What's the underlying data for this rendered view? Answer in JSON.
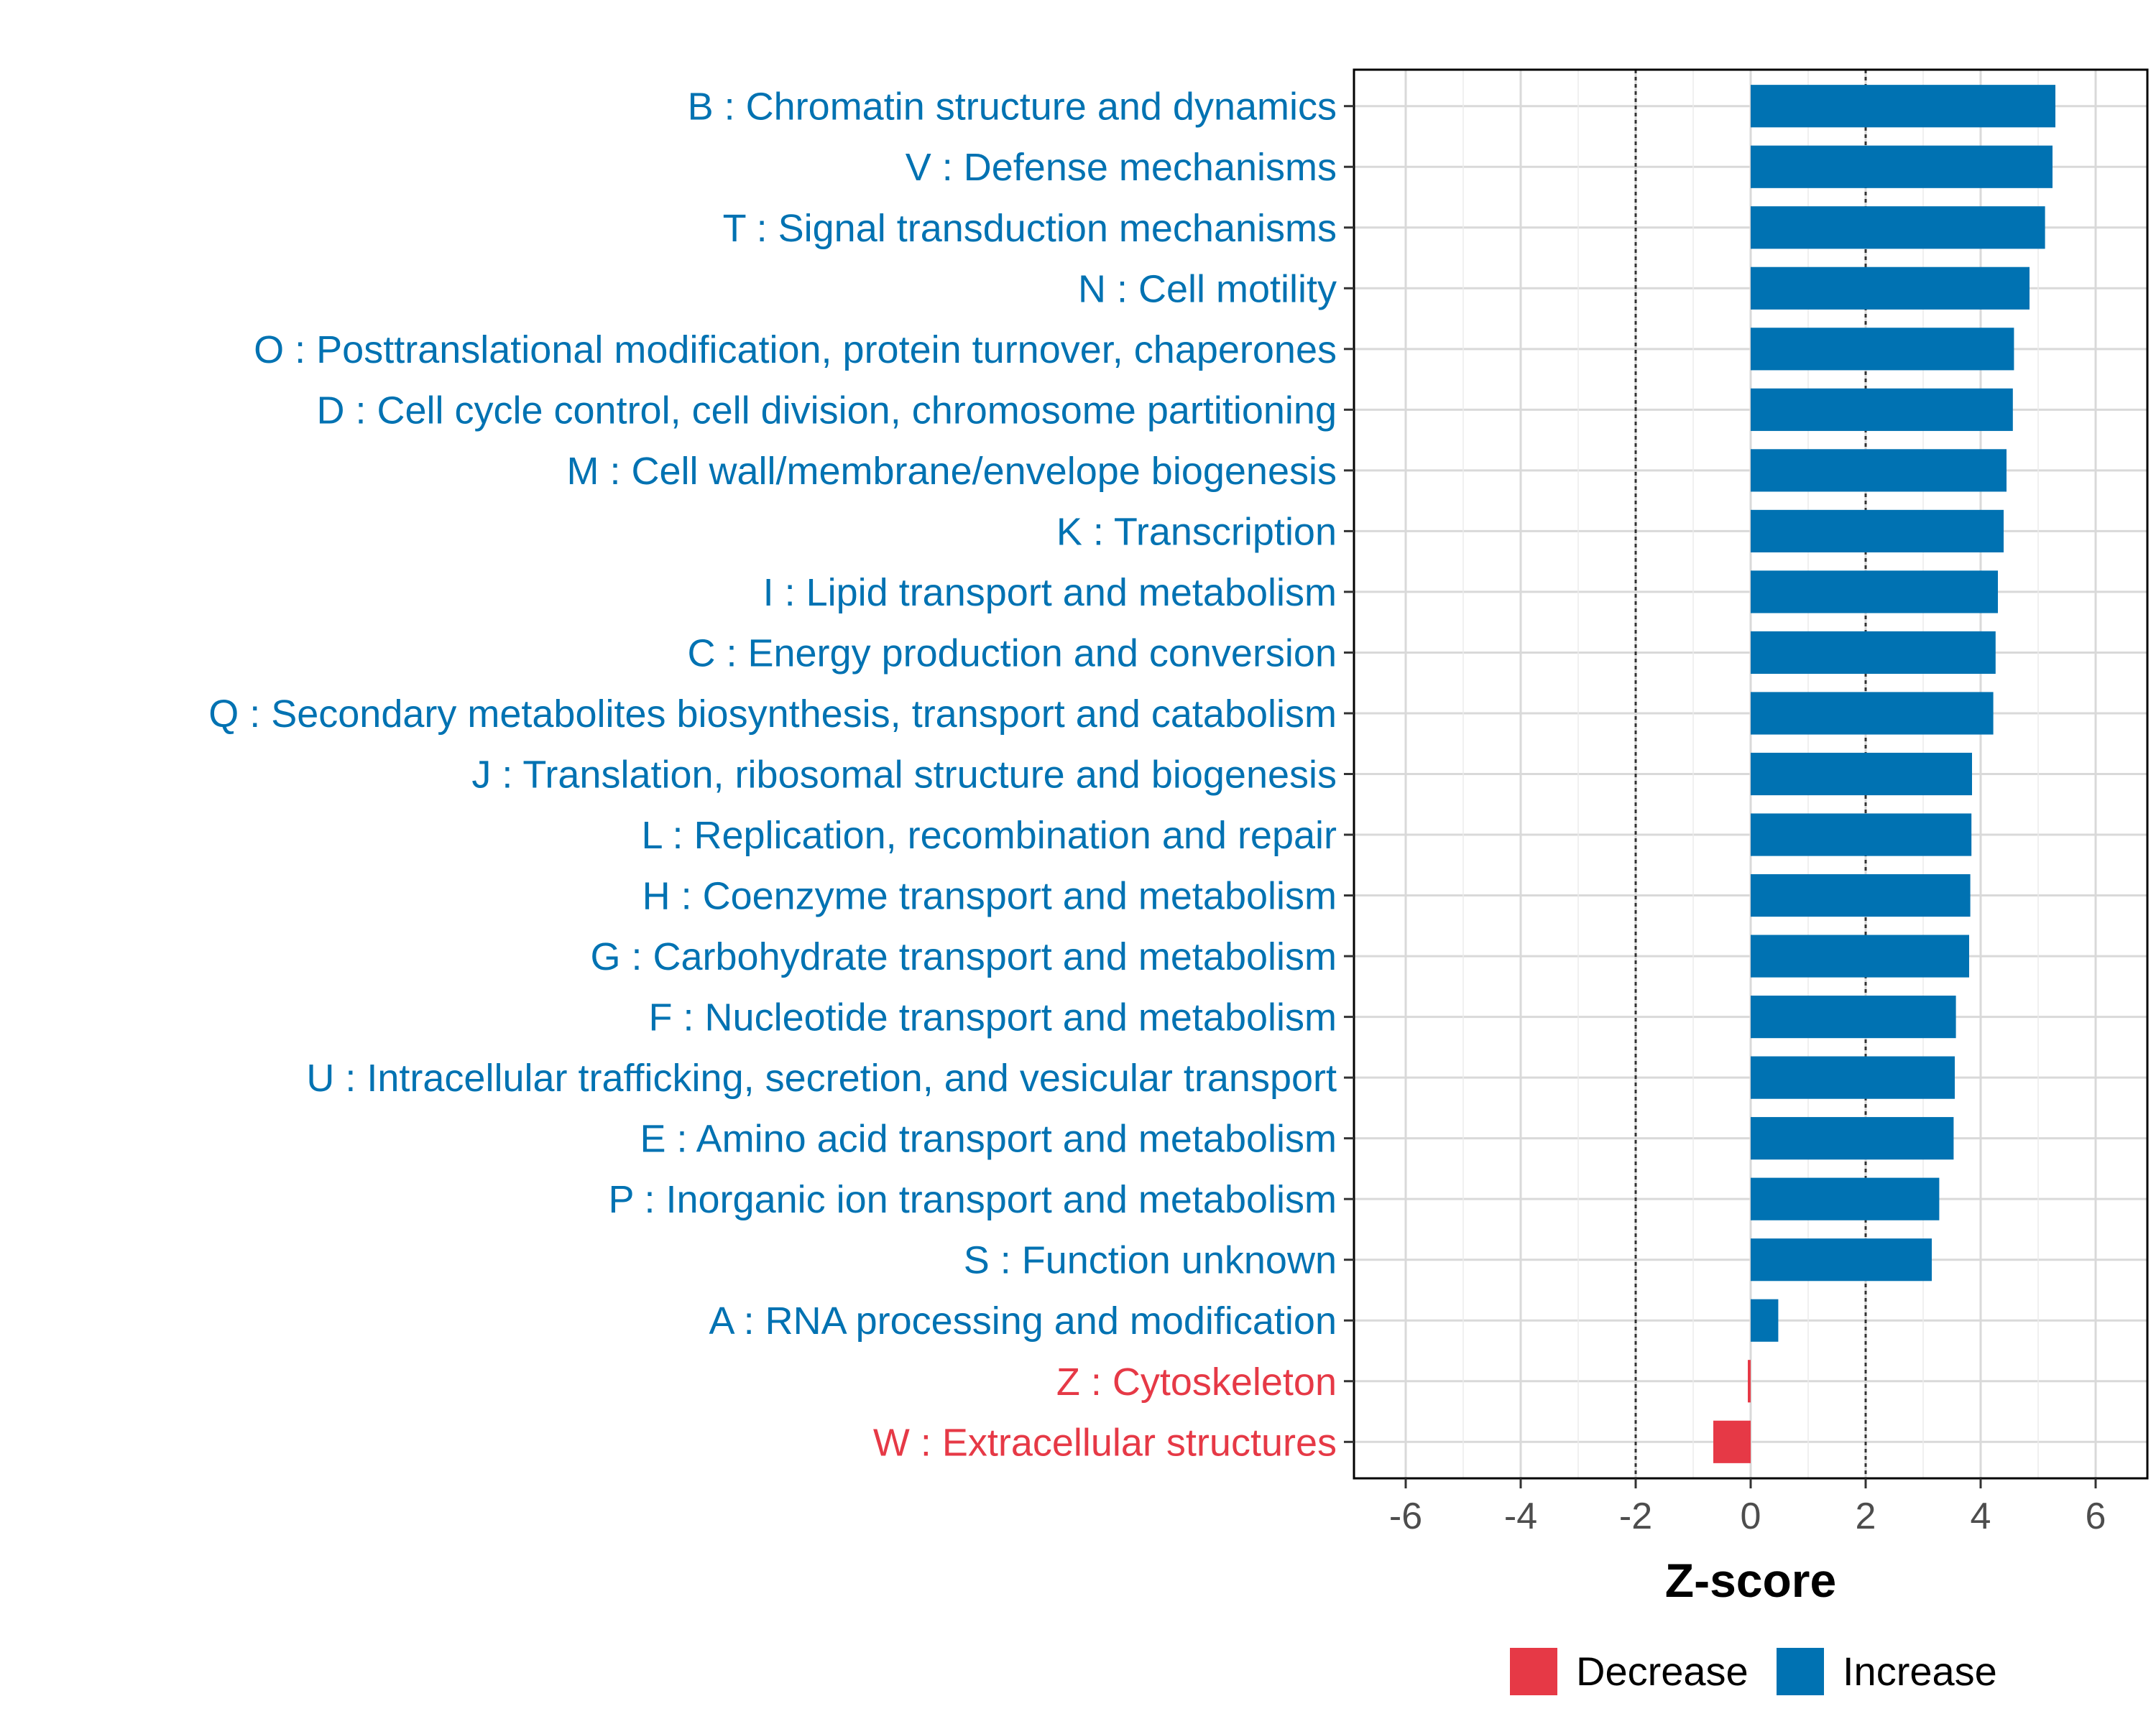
{
  "chart_data": {
    "type": "bar",
    "orientation": "horizontal",
    "xlabel": "Z-score",
    "ylabel": "",
    "xlim": [
      -6.9,
      6.9
    ],
    "xticks": [
      -6,
      -4,
      -2,
      0,
      2,
      4,
      6
    ],
    "xtick_labels": [
      "-6",
      "-4",
      "-2",
      "0",
      "2",
      "4",
      "6"
    ],
    "reference_lines": [
      -2,
      2
    ],
    "grid": true,
    "colors": {
      "Increase": "#0072B2",
      "Decrease": "#E63946"
    },
    "legend": {
      "position": "bottom",
      "entries": [
        {
          "label": "Decrease",
          "color": "#E63946"
        },
        {
          "label": "Increase",
          "color": "#0072B2"
        }
      ]
    },
    "categories": [
      "B : Chromatin structure and dynamics",
      "V : Defense mechanisms",
      "T : Signal transduction mechanisms",
      "N : Cell motility",
      "O : Posttranslational modification, protein turnover, chaperones",
      "D : Cell cycle control, cell division, chromosome partitioning",
      "M : Cell wall/membrane/envelope biogenesis",
      "K : Transcription",
      "I : Lipid transport and metabolism",
      "C : Energy production and conversion",
      "Q : Secondary metabolites biosynthesis, transport and catabolism",
      "J : Translation, ribosomal structure and biogenesis",
      "L : Replication, recombination and repair",
      "H : Coenzyme transport and metabolism",
      "G : Carbohydrate transport and metabolism",
      "F : Nucleotide transport and metabolism",
      "U : Intracellular trafficking, secretion, and vesicular transport",
      "E : Amino acid transport and metabolism",
      "P : Inorganic ion transport and metabolism",
      "S : Function unknown",
      "A : RNA processing and modification",
      "Z : Cytoskeleton",
      "W : Extracellular structures"
    ],
    "values": [
      5.3,
      5.25,
      5.12,
      4.85,
      4.58,
      4.56,
      4.45,
      4.4,
      4.3,
      4.26,
      4.22,
      3.85,
      3.84,
      3.82,
      3.8,
      3.57,
      3.55,
      3.53,
      3.28,
      3.15,
      0.48,
      -0.05,
      -0.65
    ],
    "groups": [
      "Increase",
      "Increase",
      "Increase",
      "Increase",
      "Increase",
      "Increase",
      "Increase",
      "Increase",
      "Increase",
      "Increase",
      "Increase",
      "Increase",
      "Increase",
      "Increase",
      "Increase",
      "Increase",
      "Increase",
      "Increase",
      "Increase",
      "Increase",
      "Increase",
      "Decrease",
      "Decrease"
    ]
  }
}
